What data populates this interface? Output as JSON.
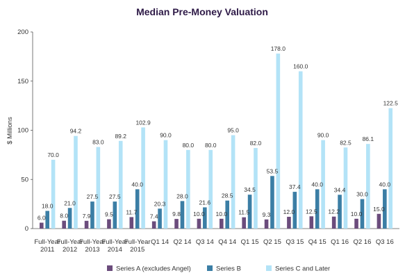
{
  "chart_data": {
    "type": "bar",
    "title": "Median Pre-Money Valuation",
    "ylabel": "$ Millions",
    "xlabel": "",
    "ylim": [
      0,
      200
    ],
    "yticks": [
      0,
      50,
      100,
      150,
      200
    ],
    "grid": false,
    "legend_position": "bottom",
    "categories": [
      [
        "Full-Year",
        "2011"
      ],
      [
        "Full-Year",
        "2012"
      ],
      [
        "Full-Year",
        "2013"
      ],
      [
        "Full-Year",
        "2014"
      ],
      [
        "Full-Year",
        "2015"
      ],
      [
        "Q1 14"
      ],
      [
        "Q2 14"
      ],
      [
        "Q3 14"
      ],
      [
        "Q4 14"
      ],
      [
        "Q1 15"
      ],
      [
        "Q2 15"
      ],
      [
        "Q3 15"
      ],
      [
        "Q4 15"
      ],
      [
        "Q1 16"
      ],
      [
        "Q2 16"
      ],
      [
        "Q3 16"
      ]
    ],
    "series": [
      {
        "name": "Series A (excludes Angel)",
        "color": "#6b4c7c",
        "values": [
          6.0,
          8.0,
          7.9,
          9.5,
          11.7,
          7.4,
          9.8,
          10.0,
          10.0,
          11.5,
          9.3,
          12.0,
          12.5,
          12.2,
          10.0,
          15.0
        ],
        "labels": [
          "6.0",
          "8.0",
          "7.9",
          "9.5",
          "11.7",
          "7.4",
          "9.8",
          "10.0",
          "10.0",
          "11.5",
          "9.3",
          "12.0",
          "12.5",
          "12.2",
          "10.0",
          "15.0"
        ]
      },
      {
        "name": "Series B",
        "color": "#3b7ea5",
        "values": [
          18.0,
          21.0,
          27.5,
          27.5,
          40.0,
          20.3,
          28.0,
          21.6,
          28.5,
          34.5,
          53.5,
          37.4,
          40.0,
          34.4,
          30.0,
          40.0
        ],
        "labels": [
          "18.0",
          "21.0",
          "27.5",
          "27.5",
          "40.0",
          "20.3",
          "28.0",
          "21.6",
          "28.5",
          "34.5",
          "53.5",
          "37.4",
          "40.0",
          "34.4",
          "30.0",
          "40.0"
        ]
      },
      {
        "name": "Series C and Later",
        "color": "#b3e3f7",
        "values": [
          70.0,
          94.2,
          83.0,
          89.2,
          102.9,
          90.0,
          80.0,
          80.0,
          95.0,
          82.0,
          178.0,
          160.0,
          90.0,
          82.5,
          86.1,
          122.5
        ],
        "labels": [
          "70.0",
          "94.2",
          "83.0",
          "89.2",
          "102.9",
          "90.0",
          "80.0",
          "80.0",
          "95.0",
          "82.0",
          "178.0",
          "160.0",
          "90.0",
          "82.5",
          "86.1",
          "122.5"
        ]
      }
    ]
  }
}
